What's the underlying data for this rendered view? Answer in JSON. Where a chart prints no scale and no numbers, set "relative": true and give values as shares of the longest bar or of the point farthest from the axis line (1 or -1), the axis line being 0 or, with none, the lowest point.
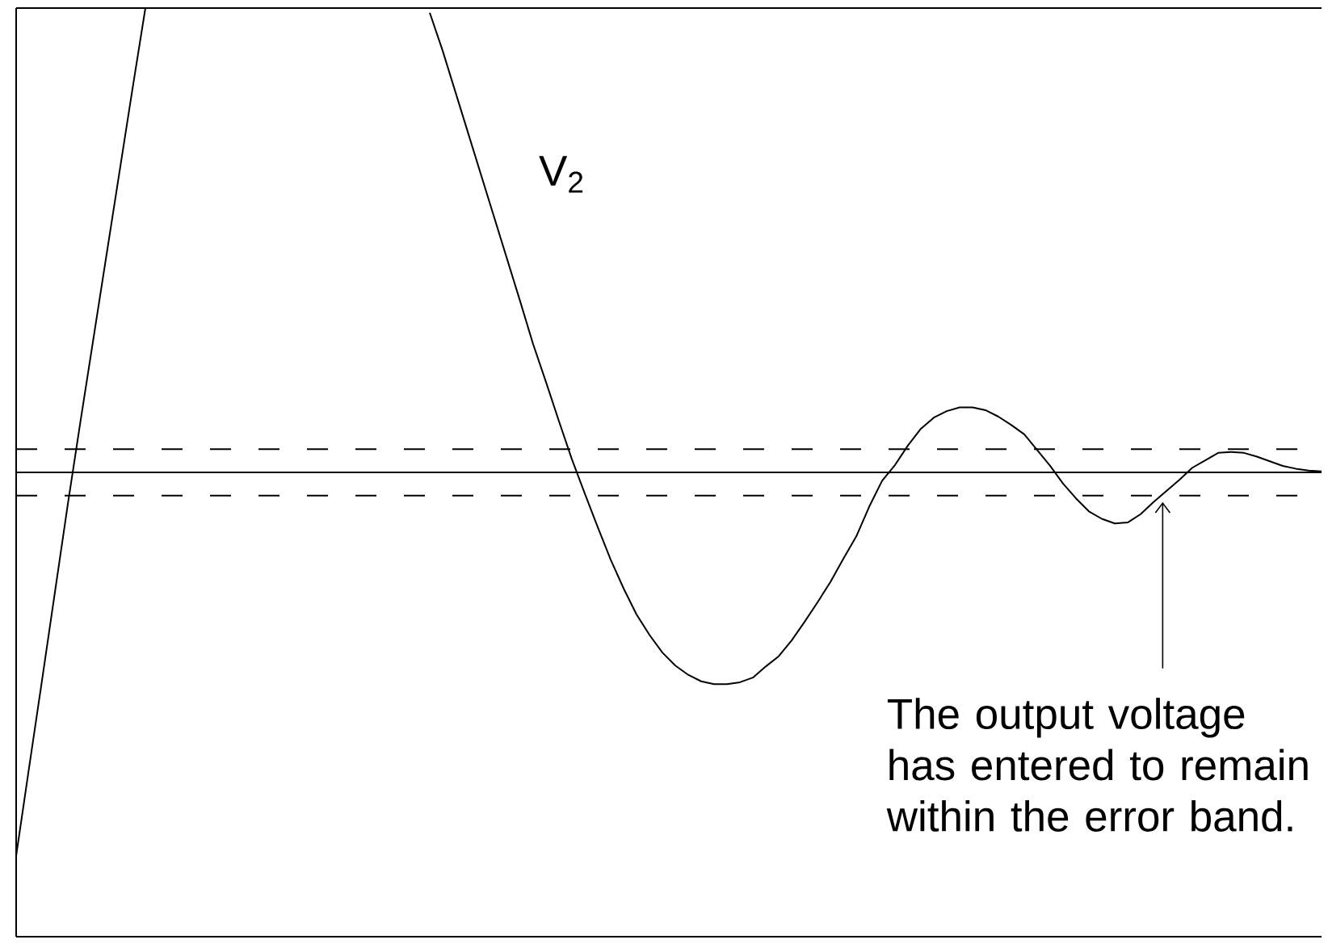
{
  "chart_data": {
    "type": "line",
    "relative": true,
    "categories": [
      null,
      null,
      null,
      null,
      null,
      null,
      null,
      null,
      null,
      null,
      null,
      null,
      null,
      null,
      null,
      null,
      null,
      null,
      null,
      null,
      null,
      null,
      null,
      null,
      null,
      null,
      null,
      null,
      null,
      null,
      null,
      null,
      null,
      null,
      null,
      null,
      null,
      null,
      null,
      null,
      null,
      null,
      null,
      null,
      null,
      null,
      null,
      null,
      null,
      null,
      null,
      null,
      null,
      null,
      null,
      null,
      null,
      null,
      null,
      null,
      null,
      null,
      null,
      null,
      null,
      null,
      null,
      null,
      null,
      null,
      null,
      null,
      null,
      null,
      null,
      null,
      null,
      null,
      null,
      null,
      null,
      null,
      null,
      null,
      null,
      null,
      null,
      null,
      null,
      null,
      null,
      null,
      null,
      null,
      null,
      null,
      null,
      null,
      null,
      null,
      null,
      null
    ],
    "series": [
      {
        "name": "V$_{2}$",
        "color": "#000000",
        "values": [
          0.087,
          0.182,
          0.276,
          0.371,
          0.466,
          0.557,
          0.646,
          0.735,
          0.824,
          0.913,
          1.0,
          null,
          null,
          null,
          null,
          null,
          null,
          null,
          null,
          null,
          null,
          null,
          null,
          null,
          null,
          null,
          null,
          null,
          null,
          null,
          null,
          null,
          0.995,
          0.954,
          0.909,
          0.864,
          0.819,
          0.774,
          0.729,
          0.684,
          0.638,
          0.597,
          0.555,
          0.514,
          0.477,
          0.441,
          0.406,
          0.375,
          0.347,
          0.325,
          0.306,
          0.292,
          0.282,
          0.275,
          0.272,
          0.272,
          0.274,
          0.279,
          0.291,
          0.302,
          0.319,
          0.339,
          0.36,
          0.382,
          0.407,
          0.431,
          0.463,
          0.491,
          0.508,
          0.529,
          0.547,
          0.559,
          0.566,
          0.57,
          0.57,
          0.567,
          0.56,
          0.551,
          0.541,
          0.524,
          0.507,
          0.488,
          0.472,
          0.458,
          0.45,
          0.445,
          0.446,
          0.455,
          0.468,
          0.48,
          0.492,
          0.505,
          0.513,
          0.521,
          0.522,
          0.521,
          0.517,
          0.512,
          0.507,
          0.504,
          0.502,
          0.501
        ]
      }
    ],
    "ref_lines": [
      {
        "axis": "y",
        "value": 0.525,
        "line_style": "dashed",
        "color": "#000000"
      },
      {
        "axis": "y",
        "value": 0.5,
        "line_style": "solid",
        "color": "#000000"
      },
      {
        "axis": "y",
        "value": 0.475,
        "line_style": "dashed",
        "color": "#000000"
      }
    ],
    "annotations": [
      "The output voltage has entered to remain within the error band."
    ],
    "marker": "none",
    "line_style": "solid"
  }
}
